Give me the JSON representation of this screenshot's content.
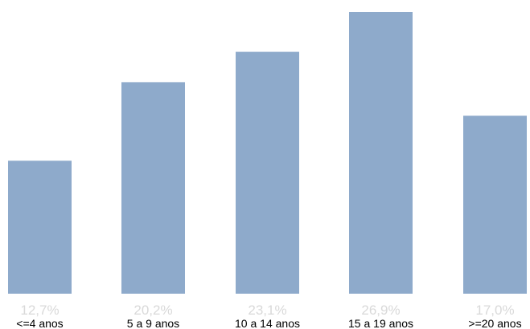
{
  "chart_data": {
    "type": "bar",
    "categories": [
      "<=4 anos",
      "5 a 9 anos",
      "10 a 14 anos",
      "15 a 19 anos",
      ">=20 anos"
    ],
    "values": [
      12.7,
      20.2,
      23.1,
      26.9,
      17.0
    ],
    "value_labels": [
      "12,7%",
      "20,2%",
      "23,1%",
      "26,9%",
      "17,0%"
    ],
    "unit": "%",
    "ylim": [
      0,
      26.9
    ],
    "grid": false,
    "colors": {
      "bar": "#8eaacb",
      "value_label": "#d9d9d9",
      "category_label": "#000000",
      "background": "#ffffff"
    }
  }
}
